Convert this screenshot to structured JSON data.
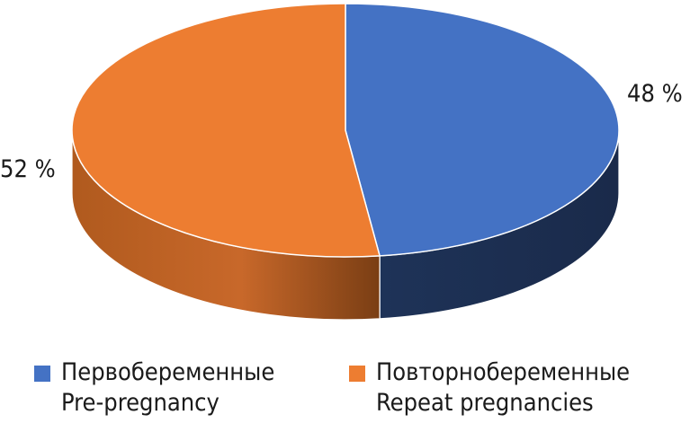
{
  "chart_data": {
    "type": "pie",
    "style": "3d",
    "slices": [
      {
        "label_ru": "Первобеременные",
        "label_en": "Pre-pregnancy",
        "value": 48,
        "value_label": "48 %",
        "color": "#4472C4",
        "side_color": "#1F2F55"
      },
      {
        "label_ru": "Повторнобеременные",
        "label_en": "Repeat pregnancies",
        "value": 52,
        "value_label": "52 %",
        "color": "#ED7D31",
        "side_color": "#B35A1C"
      }
    ],
    "legend_position": "bottom"
  }
}
